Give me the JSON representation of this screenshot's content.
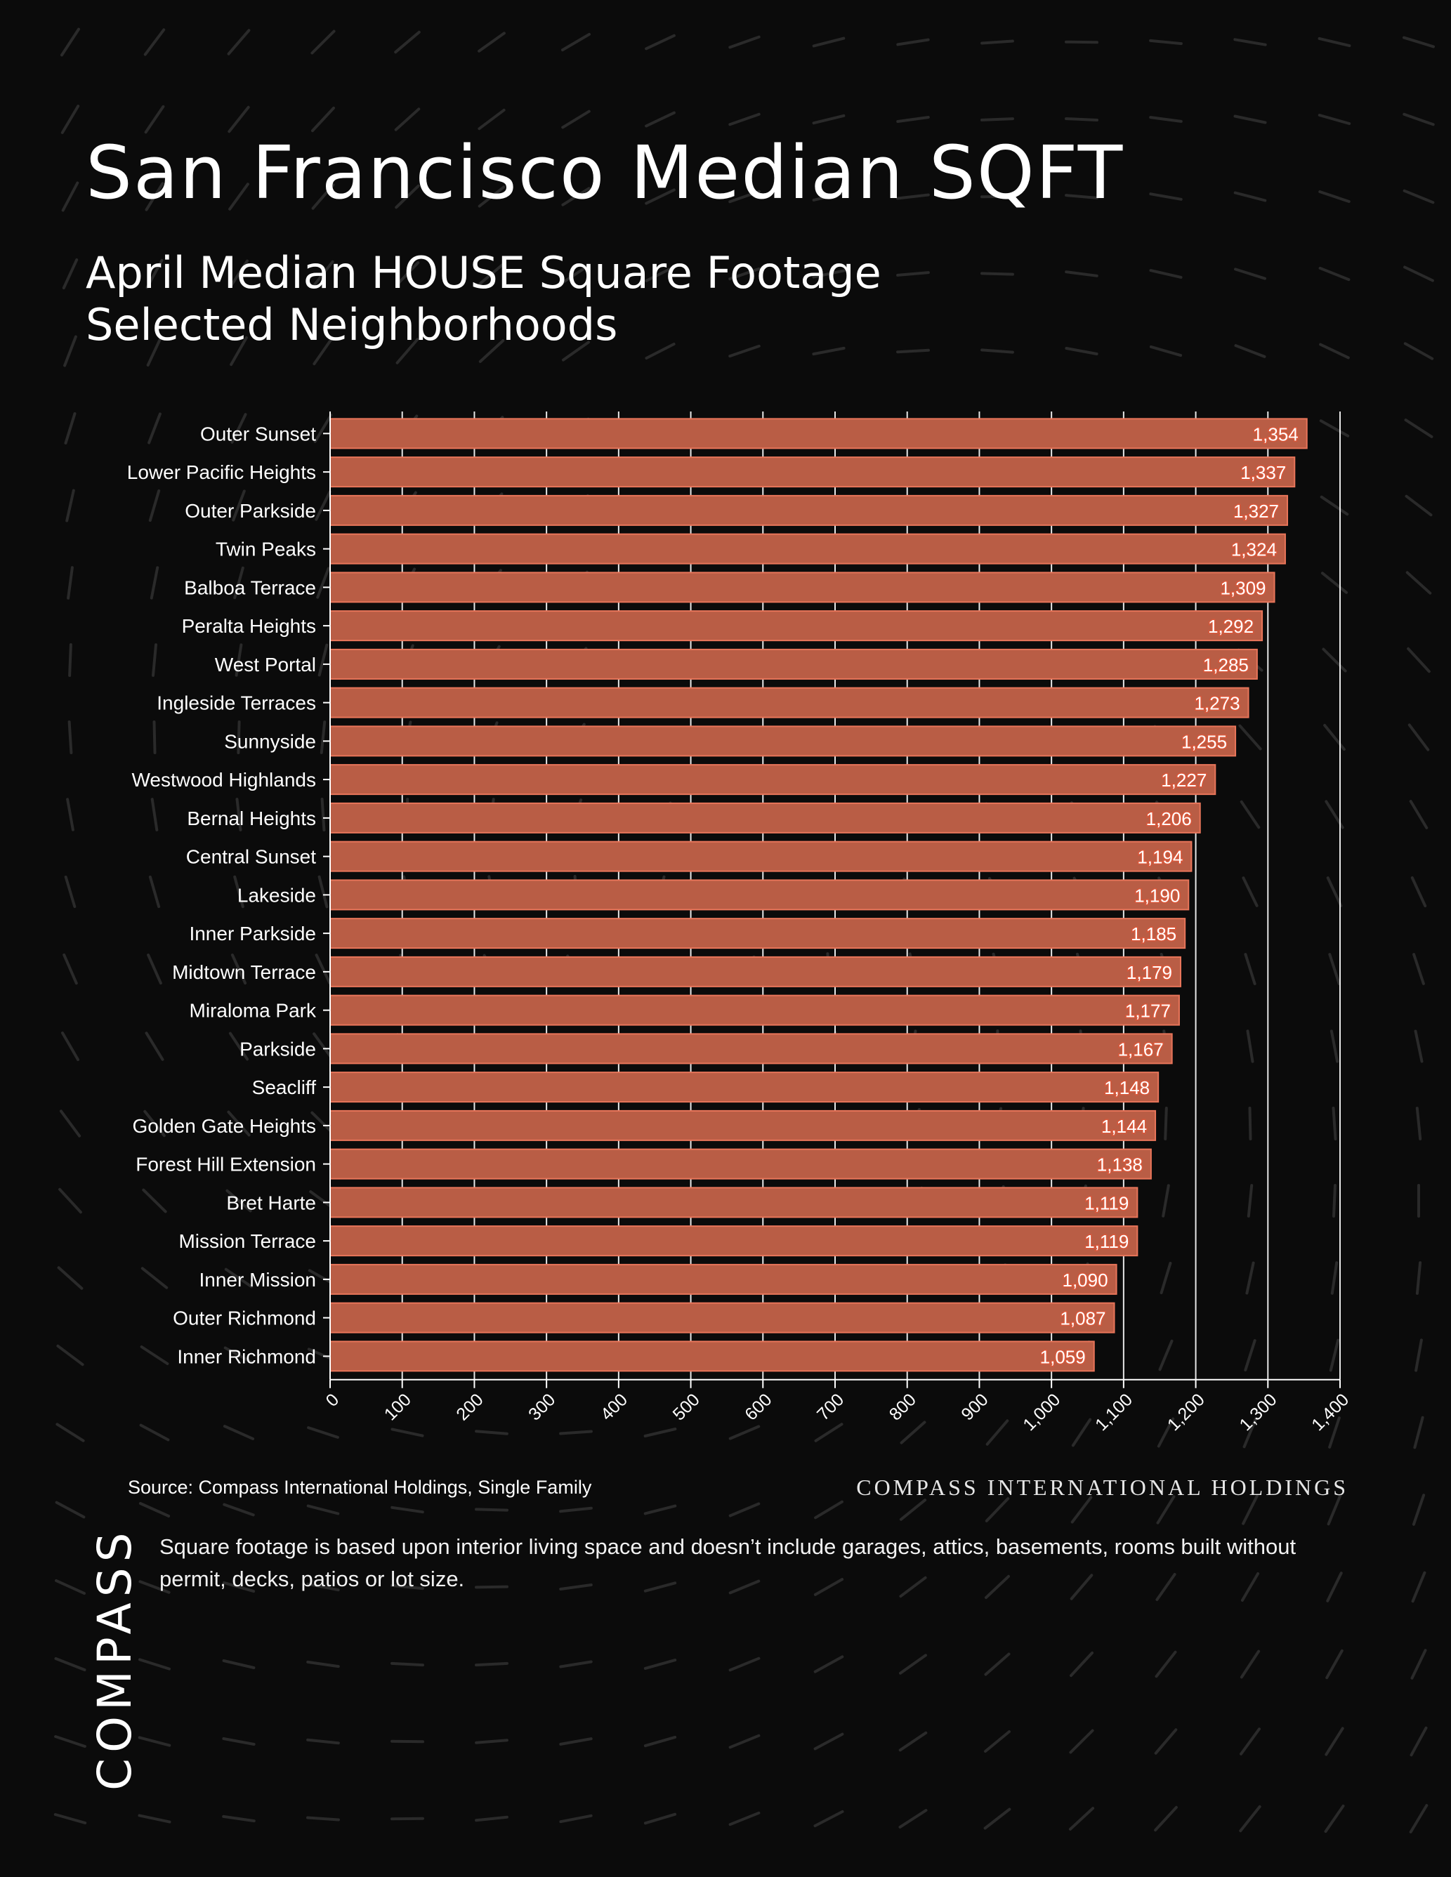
{
  "header": {
    "title": "San Francisco Median SQFT",
    "subtitle_line1": "April Median HOUSE Square Footage",
    "subtitle_line2": "Selected Neighborhoods"
  },
  "footer": {
    "source": "Source: Compass International Holdings, Single Family",
    "brand": "COMPASS INTERNATIONAL HOLDINGS",
    "note": "Square footage is based upon interior living space and doesn’t include garages, attics, basements, rooms built without permit, decks, patios or lot size.",
    "logo": "COMPASS"
  },
  "colors": {
    "background": "#0b0b0b",
    "bar": "#b95d45",
    "bar_outline": "#e8755a",
    "gridline": "#ffffff"
  },
  "chart_data": {
    "type": "bar",
    "orientation": "horizontal",
    "categories": [
      "Outer Sunset",
      "Lower Pacific Heights",
      "Outer Parkside",
      "Twin Peaks",
      "Balboa Terrace",
      "Peralta Heights",
      "West Portal",
      "Ingleside Terraces",
      "Sunnyside",
      "Westwood Highlands",
      "Bernal Heights",
      "Central Sunset",
      "Lakeside",
      "Inner Parkside",
      "Midtown Terrace",
      "Miraloma Park",
      "Parkside",
      "Seacliff",
      "Golden Gate Heights",
      "Forest Hill Extension",
      "Bret Harte",
      "Mission Terrace",
      "Inner Mission",
      "Outer Richmond",
      "Inner Richmond"
    ],
    "values": [
      1354,
      1337,
      1327,
      1324,
      1309,
      1292,
      1285,
      1273,
      1255,
      1227,
      1206,
      1194,
      1190,
      1185,
      1179,
      1177,
      1167,
      1148,
      1144,
      1138,
      1119,
      1119,
      1090,
      1087,
      1059
    ],
    "value_labels": [
      "1,354",
      "1,337",
      "1,327",
      "1,324",
      "1,309",
      "1,292",
      "1,285",
      "1,273",
      "1,255",
      "1,227",
      "1,206",
      "1,194",
      "1,190",
      "1,185",
      "1,179",
      "1,177",
      "1,167",
      "1,148",
      "1,144",
      "1,138",
      "1,119",
      "1,119",
      "1,090",
      "1,087",
      "1,059"
    ],
    "xlim": [
      0,
      1400
    ],
    "xticks": [
      0,
      100,
      200,
      300,
      400,
      500,
      600,
      700,
      800,
      900,
      1000,
      1100,
      1200,
      1300,
      1400
    ],
    "xtick_labels": [
      "0",
      "100",
      "200",
      "300",
      "400",
      "500",
      "600",
      "700",
      "800",
      "900",
      "1,000",
      "1,100",
      "1,200",
      "1,300",
      "1,400"
    ],
    "grid": true,
    "data_labels": "inside-end"
  }
}
